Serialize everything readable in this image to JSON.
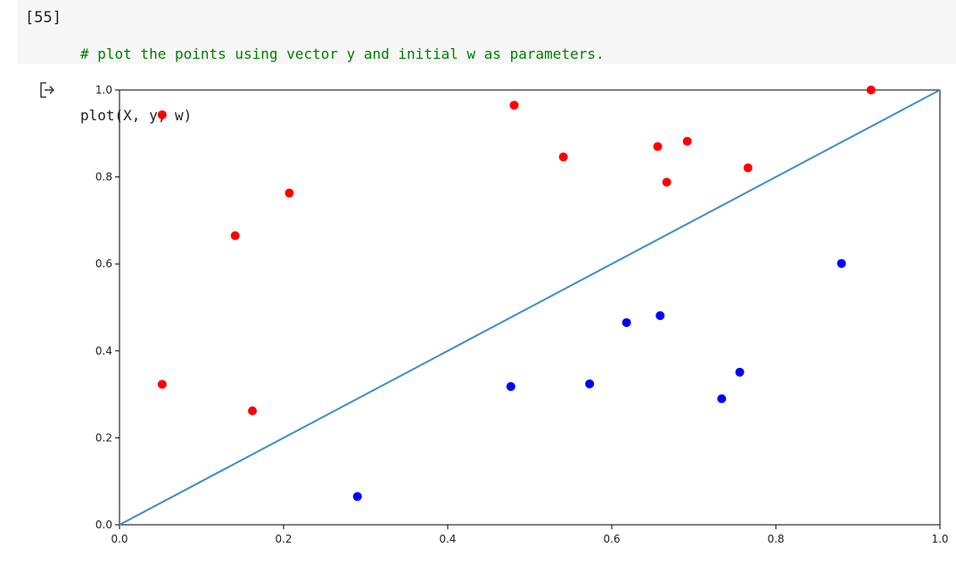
{
  "cell": {
    "exec_count": "[55]",
    "code": {
      "line1": "# plot the points using vector y and initial w as parameters.",
      "line2": "plot(X, y, w)"
    }
  },
  "output": {
    "icon": "output-redirect-icon"
  },
  "chart_data": {
    "type": "scatter",
    "xlim": [
      0.0,
      1.0
    ],
    "ylim": [
      0.0,
      1.0
    ],
    "xticks": [
      "0.0",
      "0.2",
      "0.4",
      "0.6",
      "0.8",
      "1.0"
    ],
    "yticks": [
      "0.0",
      "0.2",
      "0.4",
      "0.6",
      "0.8",
      "1.0"
    ],
    "grid": false,
    "series": [
      {
        "color": "#ff0000",
        "points": [
          [
            0.052,
            0.943
          ],
          [
            0.481,
            0.965
          ],
          [
            0.541,
            0.846
          ],
          [
            0.656,
            0.87
          ],
          [
            0.692,
            0.882
          ],
          [
            0.667,
            0.788
          ],
          [
            0.766,
            0.821
          ],
          [
            0.916,
            1.0
          ],
          [
            0.207,
            0.763
          ],
          [
            0.141,
            0.665
          ],
          [
            0.052,
            0.323
          ],
          [
            0.162,
            0.262
          ]
        ]
      },
      {
        "color": "#0000ff",
        "points": [
          [
            0.29,
            0.065
          ],
          [
            0.477,
            0.318
          ],
          [
            0.573,
            0.324
          ],
          [
            0.618,
            0.465
          ],
          [
            0.659,
            0.481
          ],
          [
            0.734,
            0.29
          ],
          [
            0.756,
            0.351
          ],
          [
            0.88,
            0.601
          ]
        ]
      }
    ],
    "lines": [
      {
        "color": "#3f8fc4",
        "x": [
          0.0,
          1.0
        ],
        "y": [
          0.0,
          1.0
        ]
      }
    ]
  }
}
